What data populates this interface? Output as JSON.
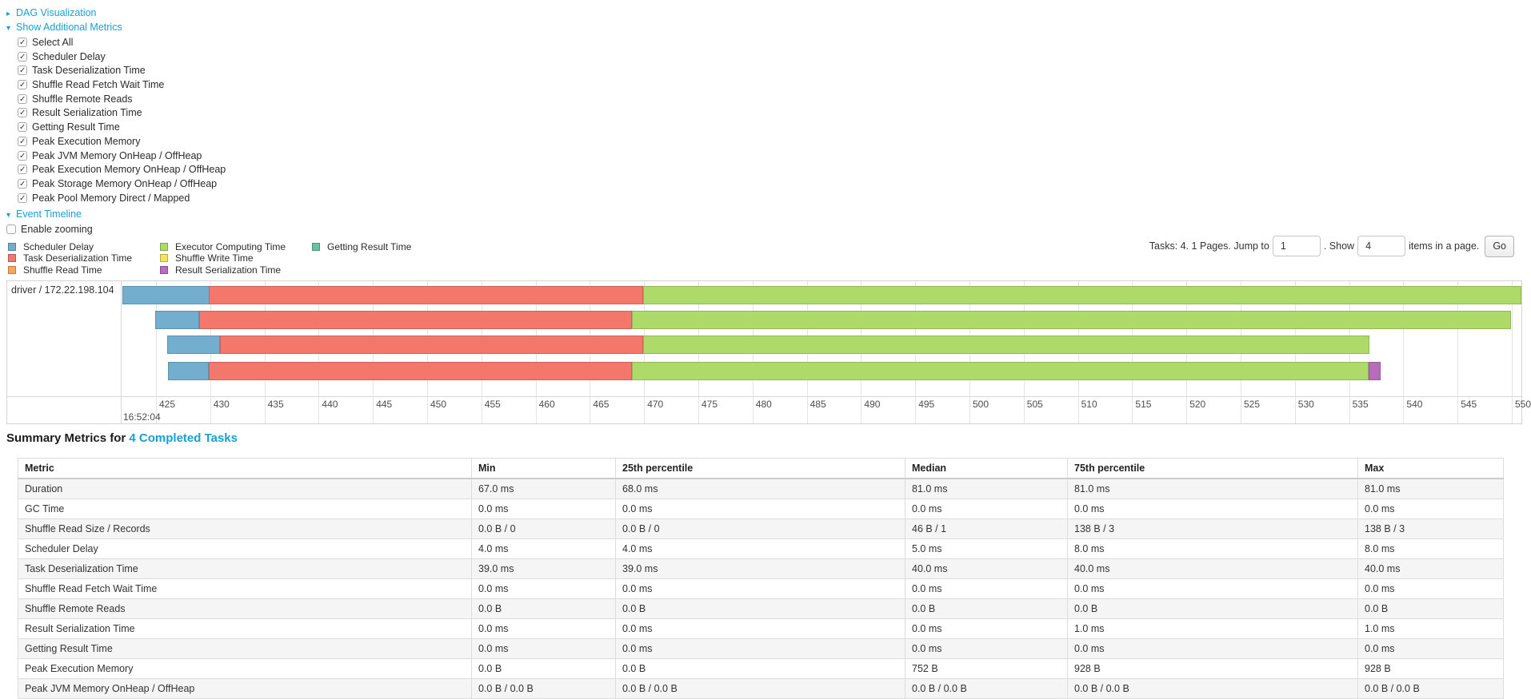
{
  "colors": {
    "link": "#17a0d4",
    "scheduler_delay": "#74AECF",
    "task_deserialization": "#F4776C",
    "shuffle_read": "#F9A65A",
    "executor_computing": "#AEDA6A",
    "shuffle_write": "#F3E55E",
    "result_serialization": "#B96BBC",
    "getting_result": "#68C2A4"
  },
  "sections": {
    "dag": "DAG Visualization",
    "metrics": "Show Additional Metrics",
    "event_timeline": "Event Timeline",
    "enable_zooming": "Enable zooming"
  },
  "metric_checkboxes": [
    "Select All",
    "Scheduler Delay",
    "Task Deserialization Time",
    "Shuffle Read Fetch Wait Time",
    "Shuffle Remote Reads",
    "Result Serialization Time",
    "Getting Result Time",
    "Peak Execution Memory",
    "Peak JVM Memory OnHeap / OffHeap",
    "Peak Execution Memory OnHeap / OffHeap",
    "Peak Storage Memory OnHeap / OffHeap",
    "Peak Pool Memory Direct / Mapped"
  ],
  "legend": {
    "columns": [
      [
        {
          "key": "scheduler_delay",
          "label": "Scheduler Delay"
        },
        {
          "key": "task_deserialization",
          "label": "Task Deserialization Time"
        },
        {
          "key": "shuffle_read",
          "label": "Shuffle Read Time"
        }
      ],
      [
        {
          "key": "executor_computing",
          "label": "Executor Computing Time"
        },
        {
          "key": "shuffle_write",
          "label": "Shuffle Write Time"
        },
        {
          "key": "result_serialization",
          "label": "Result Serialization Time"
        }
      ],
      [
        {
          "key": "getting_result",
          "label": "Getting Result Time"
        }
      ]
    ]
  },
  "pagination": {
    "prefix": "Tasks: 4. 1 Pages. Jump to",
    "jump_value": "1",
    "show_label": ". Show",
    "show_value": "4",
    "suffix": "items in a page.",
    "go_label": "Go"
  },
  "timeline": {
    "row_label": "driver / 172.22.198.104",
    "axis": {
      "ticks": [
        "425",
        "430",
        "435",
        "440",
        "445",
        "450",
        "455",
        "460",
        "465",
        "470",
        "475",
        "480",
        "485",
        "490",
        "495",
        "500",
        "505",
        "510",
        "515",
        "520",
        "525",
        "530",
        "535",
        "540",
        "545",
        "550"
      ],
      "time_label": "16:52:04",
      "tick_start_ms": 425,
      "tick_step_ms": 5
    },
    "bars": [
      {
        "segments": [
          {
            "key": "scheduler_delay",
            "from": 421.9,
            "to": 429.9
          },
          {
            "key": "task_deserialization",
            "from": 429.9,
            "to": 469.9
          },
          {
            "key": "executor_computing",
            "from": 469.9,
            "to": 550.9
          }
        ]
      },
      {
        "segments": [
          {
            "key": "scheduler_delay",
            "from": 424.9,
            "to": 429.0
          },
          {
            "key": "task_deserialization",
            "from": 429.0,
            "to": 468.9
          },
          {
            "key": "executor_computing",
            "from": 468.9,
            "to": 549.9
          }
        ]
      },
      {
        "segments": [
          {
            "key": "scheduler_delay",
            "from": 426.0,
            "to": 430.9
          },
          {
            "key": "task_deserialization",
            "from": 430.9,
            "to": 469.9
          },
          {
            "key": "executor_computing",
            "from": 469.9,
            "to": 536.9
          }
        ]
      },
      {
        "segments": [
          {
            "key": "scheduler_delay",
            "from": 426.1,
            "to": 429.9
          },
          {
            "key": "task_deserialization",
            "from": 429.9,
            "to": 468.9
          },
          {
            "key": "executor_computing",
            "from": 468.9,
            "to": 536.8
          },
          {
            "key": "result_serialization",
            "from": 536.8,
            "to": 537.9
          }
        ]
      }
    ]
  },
  "summary": {
    "title": "Summary Metrics for",
    "title_link": "4 Completed Tasks",
    "columns": [
      "Metric",
      "Min",
      "25th percentile",
      "Median",
      "75th percentile",
      "Max"
    ],
    "rows": [
      [
        "Duration",
        "67.0 ms",
        "68.0 ms",
        "81.0 ms",
        "81.0 ms",
        "81.0 ms"
      ],
      [
        "GC Time",
        "0.0 ms",
        "0.0 ms",
        "0.0 ms",
        "0.0 ms",
        "0.0 ms"
      ],
      [
        "Shuffle Read Size / Records",
        "0.0 B / 0",
        "0.0 B / 0",
        "46 B / 1",
        "138 B / 3",
        "138 B / 3"
      ],
      [
        "Scheduler Delay",
        "4.0 ms",
        "4.0 ms",
        "5.0 ms",
        "8.0 ms",
        "8.0 ms"
      ],
      [
        "Task Deserialization Time",
        "39.0 ms",
        "39.0 ms",
        "40.0 ms",
        "40.0 ms",
        "40.0 ms"
      ],
      [
        "Shuffle Read Fetch Wait Time",
        "0.0 ms",
        "0.0 ms",
        "0.0 ms",
        "0.0 ms",
        "0.0 ms"
      ],
      [
        "Shuffle Remote Reads",
        "0.0 B",
        "0.0 B",
        "0.0 B",
        "0.0 B",
        "0.0 B"
      ],
      [
        "Result Serialization Time",
        "0.0 ms",
        "0.0 ms",
        "0.0 ms",
        "1.0 ms",
        "1.0 ms"
      ],
      [
        "Getting Result Time",
        "0.0 ms",
        "0.0 ms",
        "0.0 ms",
        "0.0 ms",
        "0.0 ms"
      ],
      [
        "Peak Execution Memory",
        "0.0 B",
        "0.0 B",
        "752 B",
        "928 B",
        "928 B"
      ],
      [
        "Peak JVM Memory OnHeap / OffHeap",
        "0.0 B / 0.0 B",
        "0.0 B / 0.0 B",
        "0.0 B / 0.0 B",
        "0.0 B / 0.0 B",
        "0.0 B / 0.0 B"
      ]
    ]
  }
}
